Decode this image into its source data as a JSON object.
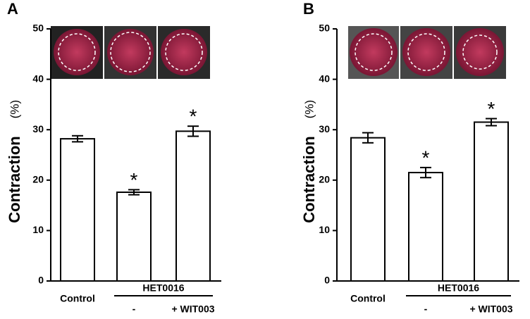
{
  "chart_data": [
    {
      "type": "bar",
      "panel_label": "A",
      "y_label": "Contraction",
      "y_unit": "(%)",
      "categories": [
        "Control",
        "-",
        "+ WIT003"
      ],
      "group_label": "HET0016",
      "values": [
        28.2,
        17.6,
        29.7
      ],
      "errors": [
        0.6,
        0.5,
        1.0
      ],
      "significance": [
        null,
        "*",
        "*"
      ],
      "color": "#ffffff",
      "ylim": [
        0,
        50
      ],
      "yticks": [
        0,
        10,
        20,
        30,
        40,
        50
      ]
    },
    {
      "type": "bar",
      "panel_label": "B",
      "y_label": "Contraction",
      "y_unit": "(%)",
      "categories": [
        "Control",
        "-",
        "+ WIT003"
      ],
      "group_label": "HET0016",
      "values": [
        28.4,
        21.5,
        31.5
      ],
      "errors": [
        1.0,
        1.0,
        0.7
      ],
      "significance": [
        null,
        "*",
        "*"
      ],
      "color": "#ffffff",
      "ylim": [
        0,
        50
      ],
      "yticks": [
        0,
        10,
        20,
        30,
        40,
        50
      ]
    }
  ]
}
